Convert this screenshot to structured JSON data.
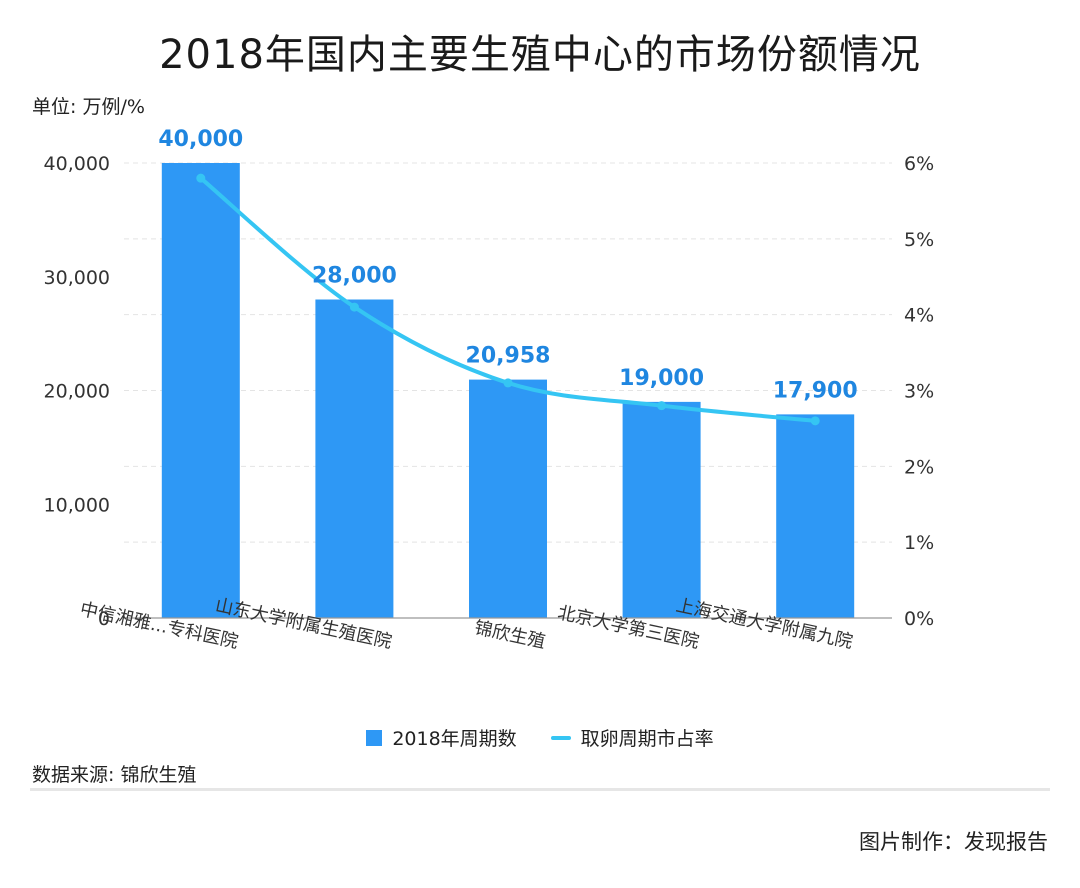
{
  "title": "2018年国内主要生殖中心的市场份额情况",
  "unit_label": "单位: 万例/%",
  "source": "数据来源: 锦欣生殖",
  "credit": "图片制作：发现报告",
  "colors": {
    "bar": "#2e98f5",
    "line": "#35c5f3",
    "label": "#1f86e0",
    "grid": "#e4e4e4"
  },
  "chart_data": {
    "type": "bar",
    "title": "2018年国内主要生殖中心的市场份额情况",
    "categories": [
      "中信湘雅...专科医院",
      "山东大学附属生殖医院",
      "锦欣生殖",
      "北京大学第三医院",
      "上海交通大学附属九院"
    ],
    "series": [
      {
        "name": "2018年周期数",
        "type": "bar",
        "axis": "left",
        "values": [
          40000,
          28000,
          20958,
          19000,
          17900
        ],
        "labels": [
          "40,000",
          "28,000",
          "20,958",
          "19,000",
          "17,900"
        ]
      },
      {
        "name": "取卵周期市占率",
        "type": "line",
        "axis": "right",
        "values": [
          5.8,
          4.1,
          3.1,
          2.8,
          2.6
        ]
      }
    ],
    "y_left": {
      "range": [
        0,
        40000
      ],
      "ticks": [
        0,
        10000,
        20000,
        30000,
        40000
      ],
      "tick_labels": [
        "0",
        "10,000",
        "20,000",
        "30,000",
        "40,000"
      ]
    },
    "y_right": {
      "range": [
        0,
        6
      ],
      "ticks": [
        0,
        1,
        2,
        3,
        4,
        5,
        6
      ],
      "tick_labels": [
        "0%",
        "1%",
        "2%",
        "3%",
        "4%",
        "5%",
        "6%"
      ]
    },
    "grid": true,
    "legend": "bottom"
  }
}
